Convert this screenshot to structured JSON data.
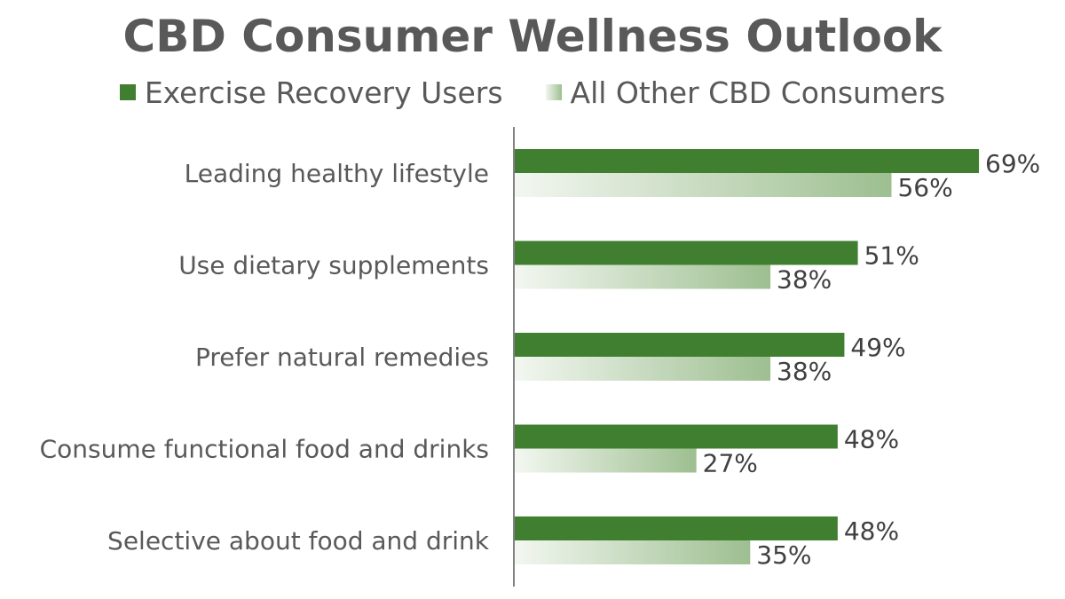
{
  "chart_data": {
    "type": "bar",
    "orientation": "horizontal",
    "title": "CBD Consumer Wellness Outlook",
    "categories": [
      "Leading healthy lifestyle",
      "Use dietary supplements",
      "Prefer natural remedies",
      "Consume functional food and drinks",
      "Selective about food and drink"
    ],
    "series": [
      {
        "name": "Exercise Recovery Users",
        "values": [
          69,
          51,
          49,
          48,
          48
        ],
        "labels": [
          "69%",
          "51%",
          "49%",
          "48%",
          "48%"
        ],
        "color": "#3f7f2f"
      },
      {
        "name": "All Other CBD Consumers",
        "values": [
          56,
          38,
          38,
          27,
          35
        ],
        "labels": [
          "56%",
          "38%",
          "38%",
          "27%",
          "35%"
        ],
        "color": "#9dbf90"
      }
    ],
    "xlim": [
      0,
      100
    ],
    "grid": false,
    "legend": "top-center"
  }
}
